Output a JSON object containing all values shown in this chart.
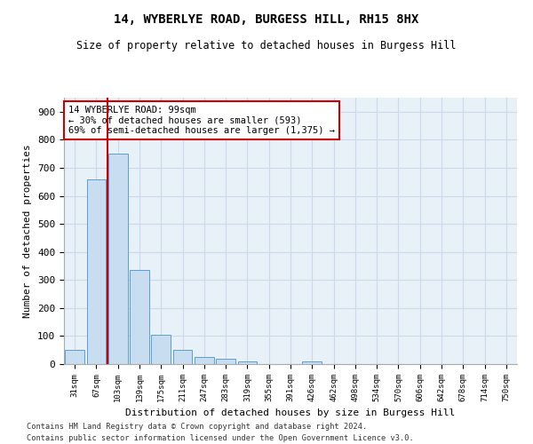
{
  "title": "14, WYBERLYE ROAD, BURGESS HILL, RH15 8HX",
  "subtitle": "Size of property relative to detached houses in Burgess Hill",
  "xlabel": "Distribution of detached houses by size in Burgess Hill",
  "ylabel": "Number of detached properties",
  "bar_labels": [
    "31sqm",
    "67sqm",
    "103sqm",
    "139sqm",
    "175sqm",
    "211sqm",
    "247sqm",
    "283sqm",
    "319sqm",
    "355sqm",
    "391sqm",
    "426sqm",
    "462sqm",
    "498sqm",
    "534sqm",
    "570sqm",
    "606sqm",
    "642sqm",
    "678sqm",
    "714sqm",
    "750sqm"
  ],
  "bar_values": [
    50,
    660,
    750,
    335,
    105,
    50,
    25,
    18,
    10,
    0,
    0,
    10,
    0,
    0,
    0,
    0,
    0,
    0,
    0,
    0,
    0
  ],
  "bar_color": "#c9ddf0",
  "bar_edge_color": "#5a9fd4",
  "annotation_text": "14 WYBERLYE ROAD: 99sqm\n← 30% of detached houses are smaller (593)\n69% of semi-detached houses are larger (1,375) →",
  "annotation_box_color": "#ffffff",
  "annotation_box_edge_color": "#cc0000",
  "vline_color": "#cc0000",
  "ylim": [
    0,
    950
  ],
  "yticks": [
    0,
    100,
    200,
    300,
    400,
    500,
    600,
    700,
    800,
    900
  ],
  "grid_color": "#ccd9e8",
  "bg_color": "#e8f0f8",
  "footer_line1": "Contains HM Land Registry data © Crown copyright and database right 2024.",
  "footer_line2": "Contains public sector information licensed under the Open Government Licence v3.0."
}
